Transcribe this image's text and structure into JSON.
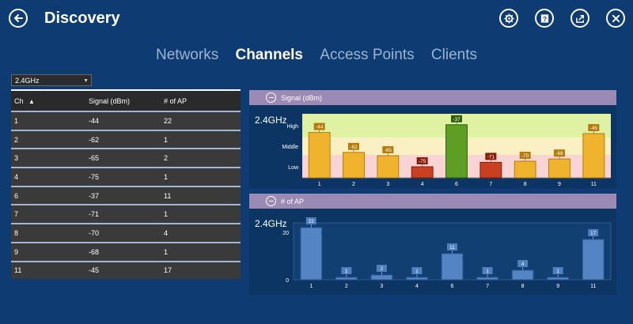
{
  "app": {
    "title": "Discovery"
  },
  "tabs": [
    {
      "label": "Networks",
      "active": false
    },
    {
      "label": "Channels",
      "active": true
    },
    {
      "label": "Access Points",
      "active": false
    },
    {
      "label": "Clients",
      "active": false
    }
  ],
  "toolbar": {
    "icons": [
      "settings-icon",
      "help-icon",
      "share-icon",
      "close-icon"
    ]
  },
  "band_select": {
    "value": "2.4GHz"
  },
  "table": {
    "headers": [
      "Ch",
      "Signal (dBm)",
      "# of AP"
    ],
    "sort_indicator": "▲",
    "rows": [
      {
        "ch": "1",
        "signal": "-44",
        "ap": "22"
      },
      {
        "ch": "2",
        "signal": "-62",
        "ap": "1"
      },
      {
        "ch": "3",
        "signal": "-65",
        "ap": "2"
      },
      {
        "ch": "4",
        "signal": "-75",
        "ap": "1"
      },
      {
        "ch": "6",
        "signal": "-37",
        "ap": "11"
      },
      {
        "ch": "7",
        "signal": "-71",
        "ap": "1"
      },
      {
        "ch": "8",
        "signal": "-70",
        "ap": "4"
      },
      {
        "ch": "9",
        "signal": "-68",
        "ap": "1"
      },
      {
        "ch": "11",
        "signal": "-45",
        "ap": "17"
      }
    ]
  },
  "signal_panel": {
    "header": "Signal (dBm)",
    "band": "2.4GHz",
    "levels": [
      "High",
      "Middle",
      "Low"
    ]
  },
  "ap_panel": {
    "header": "# of AP",
    "band": "2.4GHz",
    "yticks": [
      "20",
      "0"
    ]
  },
  "colors": {
    "background": "#0f3b73",
    "orange": "#e8a010",
    "red": "#b8280e",
    "green": "#4e8a1c",
    "blue": "#4f7fbf",
    "panel_header": "#9a8ab4"
  },
  "chart_data": [
    {
      "type": "bar",
      "title": "Signal (dBm)",
      "categories": [
        "1",
        "2",
        "3",
        "4",
        "6",
        "7",
        "8",
        "9",
        "11"
      ],
      "values": [
        -44,
        -62,
        -65,
        -75,
        -37,
        -71,
        -70,
        -68,
        -45
      ],
      "bar_colors": [
        "orange",
        "orange",
        "orange",
        "red",
        "green",
        "red",
        "orange",
        "orange",
        "orange"
      ],
      "bands": [
        "High",
        "Middle",
        "Low"
      ]
    },
    {
      "type": "bar",
      "title": "# of AP",
      "categories": [
        "1",
        "2",
        "3",
        "4",
        "6",
        "7",
        "8",
        "9",
        "11"
      ],
      "values": [
        22,
        1,
        2,
        1,
        11,
        1,
        4,
        1,
        17
      ],
      "ylim": [
        0,
        24
      ]
    }
  ]
}
